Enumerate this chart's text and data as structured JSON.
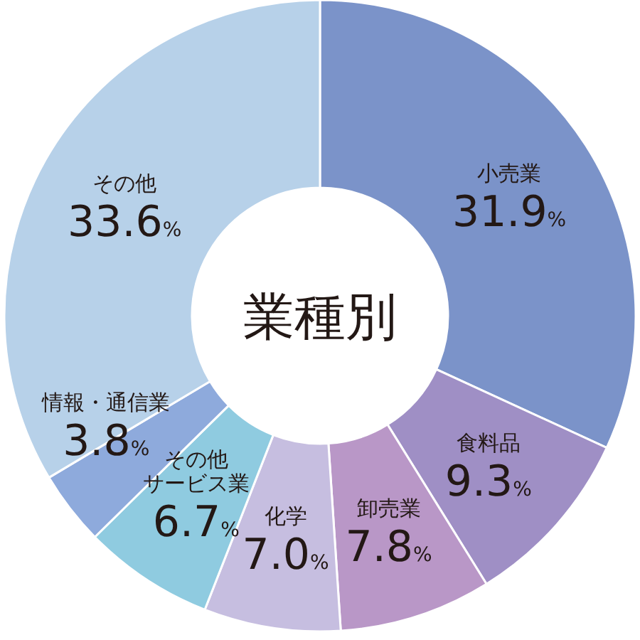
{
  "chart_data": {
    "type": "donut",
    "title": "業種別",
    "categories": [
      "小売業",
      "食料品",
      "卸売業",
      "化学",
      "その他サービス業",
      "情報・通信業",
      "その他"
    ],
    "values": [
      31.9,
      9.3,
      7.8,
      7.0,
      6.7,
      3.8,
      33.6
    ],
    "colors": [
      "#7b93c9",
      "#9f8fc5",
      "#b997c7",
      "#c6bee0",
      "#8fcbe0",
      "#8eaadc",
      "#b7d1e9"
    ],
    "value_labels": [
      "31.9%",
      "9.3%",
      "7.8%",
      "7.0%",
      "6.7%",
      "3.8%",
      "33.6%"
    ]
  }
}
